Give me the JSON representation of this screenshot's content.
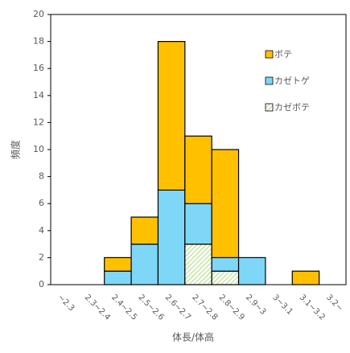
{
  "chart_data": {
    "type": "stacked-bar",
    "x_label": "体長/体高",
    "y_label": "頻度",
    "categories": [
      "~2.3",
      "2.3~2.4",
      "2.4~2.5",
      "2.5~2.6",
      "2.6~2.7",
      "2.7~2.8",
      "2.8~2.9",
      "2.9~3",
      "3~3.1",
      "3.1~3.2",
      "3.2~"
    ],
    "series": [
      {
        "name": "カゼボテ",
        "color": "#92d050",
        "hatch": true,
        "values": [
          0,
          0,
          0,
          0,
          0,
          3,
          1,
          0,
          0,
          0,
          0
        ]
      },
      {
        "name": "カゼトゲ",
        "color": "#7fd7f7",
        "values": [
          0,
          0,
          1,
          3,
          7,
          3,
          1,
          2,
          0,
          0,
          0
        ]
      },
      {
        "name": "ボテ",
        "color": "#ffc000",
        "values": [
          0,
          0,
          1,
          2,
          11,
          5,
          8,
          0,
          0,
          1,
          0
        ]
      }
    ],
    "ylim": [
      0,
      20
    ],
    "yticks": [
      0,
      2,
      4,
      6,
      8,
      10,
      12,
      14,
      16,
      18,
      20
    ]
  }
}
